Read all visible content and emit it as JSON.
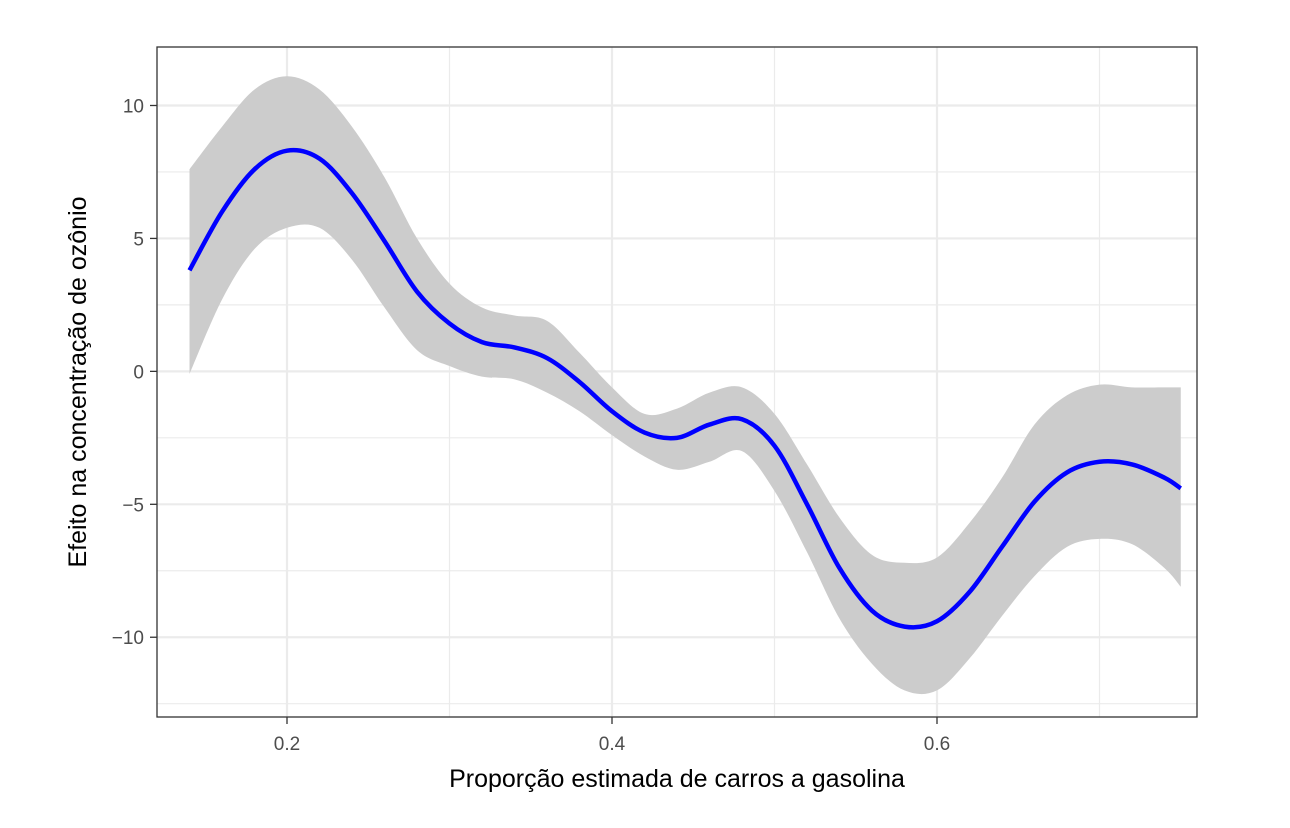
{
  "chart_data": {
    "type": "line",
    "xlabel": "Proporção estimada de carros a gasolina",
    "ylabel": "Efeito na concentração de ozônio",
    "xlim": [
      0.12,
      0.76
    ],
    "ylim": [
      -13,
      12.2
    ],
    "x_ticks": [
      0.2,
      0.4,
      0.6
    ],
    "x_tick_labels": [
      "0.2",
      "0.4",
      "0.6"
    ],
    "x_minor_ticks": [
      0.3,
      0.5,
      0.7
    ],
    "y_ticks": [
      -10,
      -5,
      0,
      5,
      10
    ],
    "y_tick_labels": [
      "−10",
      "−5",
      "0",
      "5",
      "10"
    ],
    "y_minor_ticks": [
      -12.5,
      -7.5,
      -2.5,
      2.5,
      7.5
    ],
    "grid": true,
    "panel_background": "#ffffff",
    "grid_color": "#ebebeb",
    "line_color": "#0000ff",
    "ribbon_color": "#cccccc",
    "series": [
      {
        "x": [
          0.14,
          0.16,
          0.18,
          0.2,
          0.22,
          0.24,
          0.26,
          0.28,
          0.3,
          0.32,
          0.34,
          0.36,
          0.38,
          0.4,
          0.42,
          0.44,
          0.46,
          0.48,
          0.5,
          0.52,
          0.54,
          0.56,
          0.58,
          0.6,
          0.62,
          0.64,
          0.66,
          0.68,
          0.7,
          0.72,
          0.74,
          0.75
        ],
        "y": [
          3.8,
          6.0,
          7.6,
          8.3,
          8.0,
          6.7,
          4.9,
          3.0,
          1.8,
          1.1,
          0.9,
          0.5,
          -0.4,
          -1.5,
          -2.3,
          -2.5,
          -2.0,
          -1.8,
          -2.8,
          -5.0,
          -7.4,
          -9.0,
          -9.6,
          -9.4,
          -8.3,
          -6.6,
          -4.9,
          -3.8,
          -3.4,
          -3.5,
          -4.0,
          -4.4
        ],
        "lower": [
          -0.1,
          2.7,
          4.6,
          5.4,
          5.4,
          4.2,
          2.4,
          0.8,
          0.2,
          -0.2,
          -0.3,
          -0.8,
          -1.5,
          -2.4,
          -3.2,
          -3.7,
          -3.4,
          -3.0,
          -4.5,
          -6.8,
          -9.3,
          -11.0,
          -12.0,
          -12.0,
          -10.8,
          -9.2,
          -7.7,
          -6.6,
          -6.3,
          -6.5,
          -7.4,
          -8.1
        ],
        "upper": [
          7.6,
          9.2,
          10.6,
          11.1,
          10.6,
          9.2,
          7.3,
          5.0,
          3.3,
          2.4,
          2.1,
          1.9,
          0.7,
          -0.6,
          -1.6,
          -1.4,
          -0.8,
          -0.6,
          -1.6,
          -3.5,
          -5.5,
          -6.9,
          -7.2,
          -7.0,
          -5.7,
          -4.0,
          -2.0,
          -0.9,
          -0.5,
          -0.6,
          -0.6,
          -0.6
        ]
      }
    ]
  }
}
